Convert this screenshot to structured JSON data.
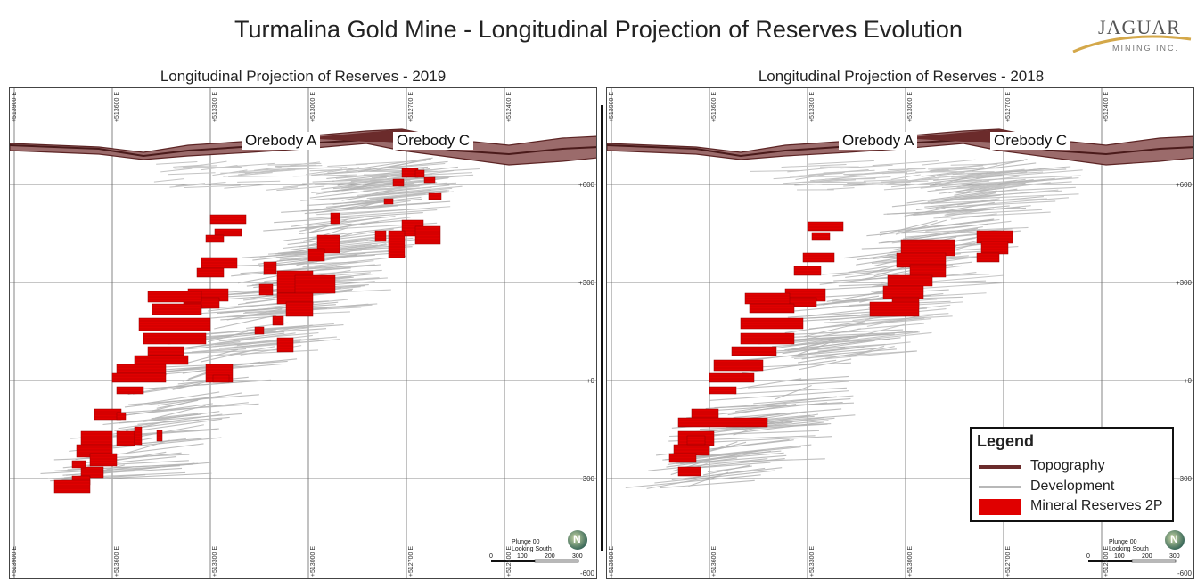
{
  "title": "Turmalina Gold Mine - Longitudinal Projection of Reserves Evolution",
  "logo": {
    "word": "JAGUAR",
    "sub": "MINING INC."
  },
  "colors": {
    "topography": "#6b2b2b",
    "development": "#b8b8b8",
    "reserves": "#e00000"
  },
  "panels": [
    {
      "title": "Longitudinal Projection of Reserves - 2019",
      "eastings": [
        "+513900 E",
        "+513600 E",
        "+513300 E",
        "+513000 E",
        "+512700 E",
        "+512400 E"
      ],
      "elevations": [
        "+600",
        "+300",
        "+0",
        "-300",
        "-600"
      ],
      "orebody_a": "Orebody A",
      "orebody_c": "Orebody C",
      "scale": {
        "plunge": "Plunge 00",
        "looking": "Looking South",
        "ticks": [
          "0",
          "100",
          "200",
          "300"
        ]
      },
      "compass": "N"
    },
    {
      "title": "Longitudinal Projection of Reserves - 2018",
      "eastings": [
        "+513900 E",
        "+513600 E",
        "+513300 E",
        "+513000 E",
        "+512700 E",
        "+512400 E"
      ],
      "elevations": [
        "+600",
        "+300",
        "+0",
        "-300",
        "-600"
      ],
      "orebody_a": "Orebody A",
      "orebody_c": "Orebody C",
      "scale": {
        "plunge": "Plunge 00",
        "looking": "Looking South",
        "ticks": [
          "0",
          "100",
          "200",
          "300"
        ]
      },
      "compass": "N"
    }
  ],
  "legend": {
    "title": "Legend",
    "items": [
      {
        "label": "Topography",
        "icon": "line",
        "color": "#6b2b2b"
      },
      {
        "label": "Development",
        "icon": "line",
        "color": "#b8b8b8"
      },
      {
        "label": "Mineral Reserves 2P",
        "icon": "box",
        "color": "#e00000"
      }
    ]
  }
}
